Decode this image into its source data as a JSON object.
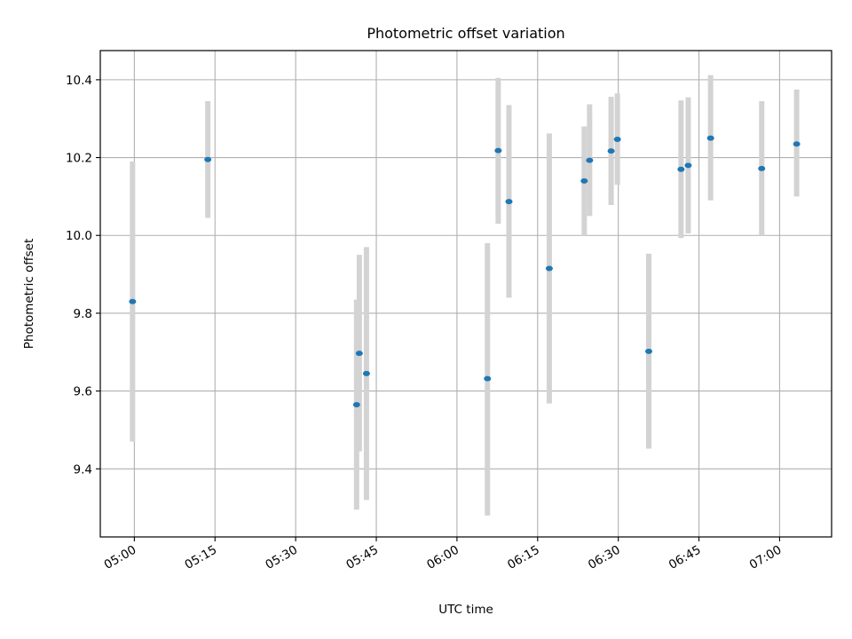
{
  "chart_data": {
    "type": "scatter",
    "title": "Photometric offset variation",
    "xlabel": "UTC time",
    "ylabel": "Photometric offset",
    "x_unit": "UTC time (HH:MM:SS)",
    "x_ticks": [
      "05:00",
      "05:15",
      "05:30",
      "05:45",
      "06:00",
      "06:15",
      "06:30",
      "06:45",
      "07:00"
    ],
    "y_ticks": [
      9.4,
      9.6,
      9.8,
      10.0,
      10.2,
      10.4
    ],
    "xlim": [
      "04:53:40",
      "07:09:40"
    ],
    "ylim": [
      9.225,
      10.475
    ],
    "grid": true,
    "colors": {
      "point": "#1f77b4",
      "errorbar": "#d3d3d3",
      "grid": "#b0b0b0"
    },
    "series": [
      {
        "points": [
          {
            "x": "04:59:40",
            "y": 9.83,
            "err": [
              9.47,
              10.19
            ]
          },
          {
            "x": "05:13:40",
            "y": 10.195,
            "err": [
              10.045,
              10.345
            ]
          },
          {
            "x": "05:41:20",
            "y": 9.565,
            "err": [
              9.295,
              9.835
            ]
          },
          {
            "x": "05:41:50",
            "y": 9.697,
            "err": [
              9.445,
              9.95
            ]
          },
          {
            "x": "05:43:10",
            "y": 9.645,
            "err": [
              9.32,
              9.97
            ]
          },
          {
            "x": "06:05:40",
            "y": 9.632,
            "err": [
              9.28,
              9.98
            ]
          },
          {
            "x": "06:07:40",
            "y": 10.218,
            "err": [
              10.03,
              10.405
            ]
          },
          {
            "x": "06:09:40",
            "y": 10.087,
            "err": [
              9.84,
              10.335
            ]
          },
          {
            "x": "06:17:10",
            "y": 9.915,
            "err": [
              9.568,
              10.262
            ]
          },
          {
            "x": "06:23:40",
            "y": 10.14,
            "err": [
              10.0,
              10.28
            ]
          },
          {
            "x": "06:24:40",
            "y": 10.193,
            "err": [
              10.05,
              10.337
            ]
          },
          {
            "x": "06:28:40",
            "y": 10.217,
            "err": [
              10.078,
              10.356
            ]
          },
          {
            "x": "06:29:50",
            "y": 10.247,
            "err": [
              10.13,
              10.365
            ]
          },
          {
            "x": "06:35:40",
            "y": 9.702,
            "err": [
              9.452,
              9.953
            ]
          },
          {
            "x": "06:41:40",
            "y": 10.17,
            "err": [
              9.993,
              10.347
            ]
          },
          {
            "x": "06:43:00",
            "y": 10.18,
            "err": [
              10.005,
              10.355
            ]
          },
          {
            "x": "06:47:10",
            "y": 10.25,
            "err": [
              10.09,
              10.412
            ]
          },
          {
            "x": "06:56:40",
            "y": 10.172,
            "err": [
              10.0,
              10.345
            ]
          },
          {
            "x": "07:03:10",
            "y": 10.235,
            "err": [
              10.1,
              10.375
            ]
          }
        ]
      }
    ]
  }
}
